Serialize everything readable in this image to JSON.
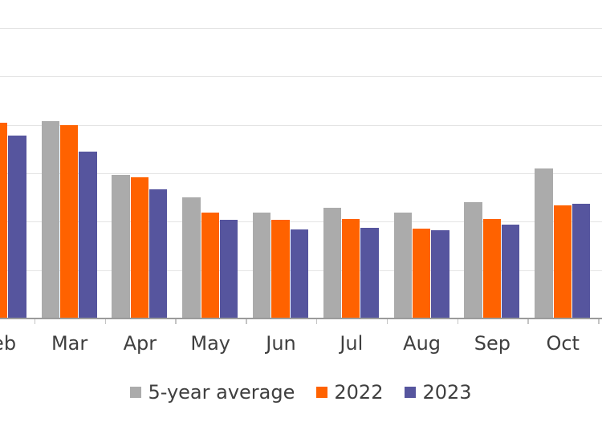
{
  "chart_data": {
    "type": "bar",
    "title": "",
    "xlabel": "",
    "ylabel": "",
    "categories": [
      "Feb",
      "Mar",
      "Apr",
      "May",
      "Jun",
      "Jul",
      "Aug",
      "Sep",
      "Oct"
    ],
    "series": [
      {
        "name": "5-year average",
        "color": "#ABABAB",
        "values": [
          null,
          4.07,
          2.97,
          2.5,
          2.19,
          2.29,
          2.18,
          2.41,
          3.1
        ]
      },
      {
        "name": "2022",
        "color": "#FF6200",
        "values": [
          4.05,
          4.0,
          2.92,
          2.18,
          2.03,
          2.05,
          1.85,
          2.05,
          2.33
        ]
      },
      {
        "name": "2023",
        "color": "#56559E",
        "values": [
          3.78,
          3.44,
          2.67,
          2.04,
          1.84,
          1.88,
          1.82,
          1.94,
          2.37
        ]
      }
    ],
    "ylim": [
      0,
      6.6
    ],
    "gridlines": [
      1,
      2,
      3,
      4,
      5,
      6
    ],
    "grid": "horizontal only, light gray",
    "legend_position": "bottom center",
    "axis_visible": "x axis only, y-axis tick labels cropped out of frame; first category (Feb) partially cropped at left edge"
  },
  "colors": {
    "background": "#FFFFFF",
    "gridline": "#E4E4E4",
    "axis_line": "#9B9B9B",
    "axis_tick": "#C4C4C4",
    "label_text": "#3F3F3F"
  }
}
